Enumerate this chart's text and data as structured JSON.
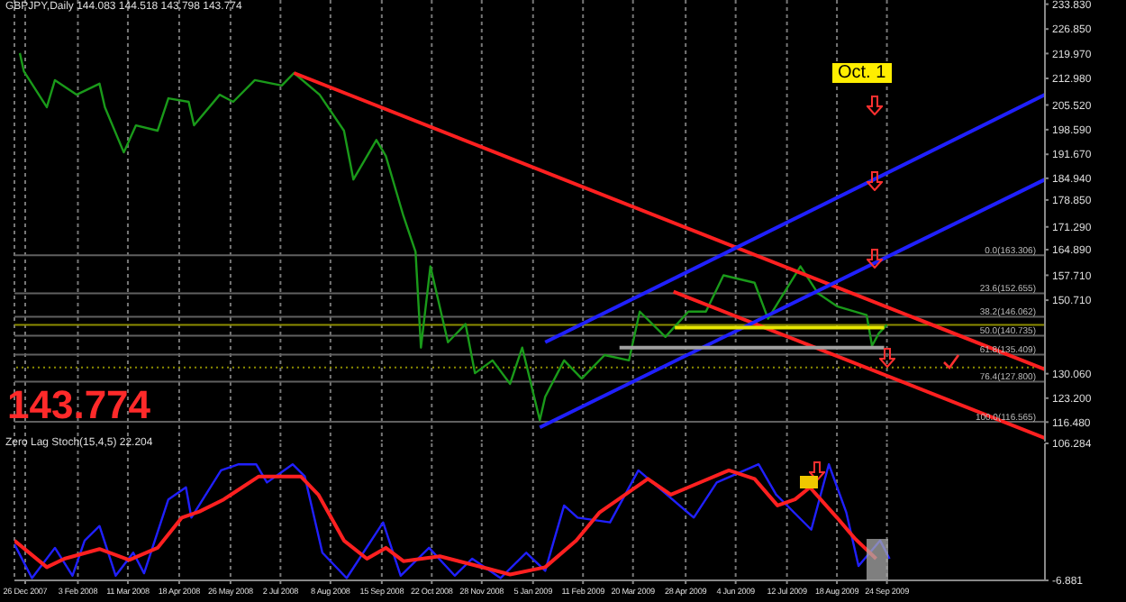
{
  "chart_data": [
    {
      "type": "line",
      "title": "GBPJPY,Daily  144.083 144.518 143.798 143.774",
      "annotations": [
        "143.774",
        "Oct. 1"
      ],
      "xlim": [
        "2007-12-18",
        "2010-01-19"
      ],
      "xticks": [
        {
          "value": "2007-12-26",
          "label": null
        },
        {
          "value": "2008-02-03",
          "label": null
        },
        {
          "value": "2008-03-11",
          "label": null
        },
        {
          "value": "2008-04-18",
          "label": null
        },
        {
          "value": "2008-05-26",
          "label": null
        },
        {
          "value": "2008-07-02",
          "label": null
        },
        {
          "value": "2008-08-08",
          "label": null
        },
        {
          "value": "2008-09-15",
          "label": null
        },
        {
          "value": "2008-10-22",
          "label": null
        },
        {
          "value": "2008-11-28",
          "label": null
        },
        {
          "value": "2009-01-05",
          "label": null
        },
        {
          "value": "2009-02-11",
          "label": null
        },
        {
          "value": "2009-03-20",
          "label": null
        },
        {
          "value": "2009-04-28",
          "label": null
        },
        {
          "value": "2009-06-04",
          "label": null
        },
        {
          "value": "2009-07-12",
          "label": null
        },
        {
          "value": "2009-08-18",
          "label": null
        },
        {
          "value": "2009-09-24",
          "label": null
        }
      ],
      "ylim": [
        111,
        235
      ],
      "yticks": [
        {
          "value": 233.83,
          "label": "233.830"
        },
        {
          "value": 226.85,
          "label": "226.850"
        },
        {
          "value": 219.97,
          "label": "219.970"
        },
        {
          "value": 212.98,
          "label": "212.980"
        },
        {
          "value": 205.52,
          "label": "205.520"
        },
        {
          "value": 198.59,
          "label": "198.590"
        },
        {
          "value": 191.67,
          "label": "191.670"
        },
        {
          "value": 184.94,
          "label": "184.940"
        },
        {
          "value": 178.85,
          "label": "178.850"
        },
        {
          "value": 171.29,
          "label": "171.290"
        },
        {
          "value": 164.89,
          "label": "164.890"
        },
        {
          "value": 157.71,
          "label": "157.710"
        },
        {
          "value": 150.71,
          "label": "150.710"
        },
        {
          "value": 130.06,
          "label": "130.060"
        },
        {
          "value": 123.2,
          "label": "123.200"
        },
        {
          "value": 116.48,
          "label": "116.480"
        }
      ],
      "tick_labels": "y",
      "grid": "x",
      "legend": false,
      "marker": "none",
      "line_style": "solid",
      "series": [
        {
          "color": "#1a9a1a",
          "x": [
            "2007-12-22",
            "2007-12-25",
            "2008-01-11",
            "2008-01-17",
            "2008-02-02",
            "2008-02-19",
            "2008-02-23",
            "2008-03-08",
            "2008-03-17",
            "2008-04-02",
            "2008-04-10",
            "2008-04-25",
            "2008-04-29",
            "2008-05-18",
            "2008-05-28",
            "2008-06-13",
            "2008-07-03",
            "2008-07-12",
            "2008-07-31",
            "2008-08-18",
            "2008-08-25",
            "2008-09-11",
            "2008-09-18",
            "2008-10-01",
            "2008-10-10",
            "2008-10-14",
            "2008-10-21",
            "2008-11-03",
            "2008-11-16",
            "2008-11-23",
            "2008-12-06",
            "2008-12-19",
            "2008-12-28",
            "2009-01-10",
            "2009-01-14",
            "2009-01-28",
            "2009-02-10",
            "2009-02-27",
            "2009-03-17",
            "2009-03-25",
            "2009-04-13",
            "2009-04-30",
            "2009-05-13",
            "2009-05-26",
            "2009-06-18",
            "2009-06-28",
            "2009-07-22",
            "2009-08-04",
            "2009-08-18",
            "2009-09-09",
            "2009-09-13",
            "2009-09-18",
            "2009-09-24"
          ],
          "values": [
            220.1,
            215.0,
            204.9,
            212.5,
            208.4,
            211.5,
            204.9,
            192.2,
            199.8,
            198.3,
            207.4,
            206.4,
            199.8,
            208.4,
            206.4,
            212.5,
            211.0,
            214.5,
            208.4,
            198.3,
            184.6,
            195.7,
            191.2,
            174.4,
            164.3,
            137.4,
            160.2,
            138.9,
            144.0,
            130.2,
            133.8,
            127.2,
            137.4,
            117.0,
            123.6,
            133.8,
            128.7,
            135.3,
            133.8,
            147.5,
            140.4,
            147.5,
            147.5,
            157.7,
            155.6,
            145.5,
            160.2,
            152.6,
            149.0,
            146.5,
            137.9,
            141.4,
            143.8
          ]
        },
        {
          "color": "#ff2020",
          "x": [
            "2008-07-12",
            "2010-01-19"
          ],
          "values": [
            214.5,
            131.3
          ]
        },
        {
          "color": "#ff2020",
          "x": [
            "2009-04-19",
            "2010-01-19"
          ],
          "values": [
            153.1,
            112
          ]
        },
        {
          "color": "#2020ff",
          "x": [
            "2009-01-14",
            "2010-01-19"
          ],
          "values": [
            138.9,
            208.4
          ]
        },
        {
          "color": "#2020ff",
          "x": [
            "2009-01-10",
            "2010-01-19"
          ],
          "values": [
            115.0,
            184.6
          ]
        },
        {
          "color": "#e6e600",
          "x": [
            "2009-04-20",
            "2009-09-22"
          ],
          "values": [
            143.0,
            143.0
          ]
        },
        {
          "color": "#a0a0a0",
          "x": [
            "2009-03-10",
            "2009-09-22"
          ],
          "values": [
            137.4,
            137.4
          ]
        }
      ],
      "ref_lines": [
        {
          "axis": "y",
          "value": 143.774,
          "color": "#8c8c00",
          "line_style": "solid"
        },
        {
          "axis": "y",
          "value": 131.8,
          "color": "#8c8c00",
          "line_style": "dotted"
        },
        {
          "axis": "y",
          "value": 163.306,
          "label": "0.0(163.306)",
          "color": "#606060",
          "line_style": "solid"
        },
        {
          "axis": "y",
          "value": 152.655,
          "label": "23.6(152.655)",
          "color": "#606060",
          "line_style": "solid"
        },
        {
          "axis": "y",
          "value": 146.062,
          "label": "38.2(146.062)",
          "color": "#606060",
          "line_style": "solid"
        },
        {
          "axis": "y",
          "value": 140.735,
          "label": "50.0(140.735)",
          "color": "#606060",
          "line_style": "solid"
        },
        {
          "axis": "y",
          "value": 135.409,
          "label": "61.8(135.409)",
          "color": "#606060",
          "line_style": "solid"
        },
        {
          "axis": "y",
          "value": 127.8,
          "label": "76.4(127.800)",
          "color": "#606060",
          "line_style": "solid"
        },
        {
          "axis": "y",
          "value": 116.565,
          "label": "100.0(116.565)",
          "color": "#606060",
          "line_style": "solid"
        }
      ]
    },
    {
      "type": "line",
      "title": "Zero Lag Stoch(15,4,5) 22.204",
      "xlim": [
        "2007-12-18",
        "2010-01-19"
      ],
      "xticks": [
        {
          "value": "2007-12-26",
          "label": "26 Dec 2007"
        },
        {
          "value": "2008-02-03",
          "label": "3 Feb 2008"
        },
        {
          "value": "2008-03-11",
          "label": "11 Mar 2008"
        },
        {
          "value": "2008-04-18",
          "label": "18 Apr 2008"
        },
        {
          "value": "2008-05-26",
          "label": "26 May 2008"
        },
        {
          "value": "2008-07-02",
          "label": "2 Jul 2008"
        },
        {
          "value": "2008-08-08",
          "label": "8 Aug 2008"
        },
        {
          "value": "2008-09-15",
          "label": "15 Sep 2008"
        },
        {
          "value": "2008-10-22",
          "label": "22 Oct 2008"
        },
        {
          "value": "2008-11-28",
          "label": "28 Nov 2008"
        },
        {
          "value": "2009-01-05",
          "label": "5 Jan 2009"
        },
        {
          "value": "2009-02-11",
          "label": "11 Feb 2009"
        },
        {
          "value": "2009-03-20",
          "label": "20 Mar 2009"
        },
        {
          "value": "2009-04-28",
          "label": "28 Apr 2009"
        },
        {
          "value": "2009-06-04",
          "label": "4 Jun 2009"
        },
        {
          "value": "2009-07-12",
          "label": "12 Jul 2009"
        },
        {
          "value": "2009-08-18",
          "label": "18 Aug 2009"
        },
        {
          "value": "2009-09-24",
          "label": "24 Sep 2009"
        }
      ],
      "ylim": [
        -6.881,
        106.284
      ],
      "yticks": [
        106.284,
        -6.881
      ],
      "grid": "x",
      "legend": false,
      "marker": "none",
      "line_style": "solid",
      "series": [
        {
          "color": "#2020ff",
          "x": [
            "2007-12-18",
            "2007-12-31",
            "2008-01-17",
            "2008-01-30",
            "2008-02-08",
            "2008-02-19",
            "2008-03-02",
            "2008-03-15",
            "2008-03-23",
            "2008-04-10",
            "2008-04-23",
            "2008-04-27",
            "2008-05-19",
            "2008-06-01",
            "2008-06-14",
            "2008-06-22",
            "2008-07-11",
            "2008-07-20",
            "2008-08-02",
            "2008-08-20",
            "2008-09-16",
            "2008-09-29",
            "2008-10-20",
            "2008-11-08",
            "2008-11-21",
            "2008-12-12",
            "2008-12-31",
            "2009-01-14",
            "2009-01-28",
            "2009-02-07",
            "2009-03-03",
            "2009-03-24",
            "2009-05-04",
            "2009-05-21",
            "2009-06-21",
            "2009-07-04",
            "2009-07-30",
            "2009-08-12",
            "2009-08-25",
            "2009-09-03",
            "2009-09-19",
            "2009-09-26"
          ],
          "values": [
            23,
            -5,
            20,
            -3,
            26,
            38,
            -3,
            16,
            -1,
            60,
            70,
            45,
            84,
            89,
            89,
            74,
            89,
            79,
            16,
            -5,
            41,
            -3,
            20,
            -3,
            11,
            -5,
            16,
            1,
            55,
            45,
            41,
            84,
            45,
            74,
            89,
            64,
            35,
            89,
            49,
            5,
            26,
            11
          ]
        },
        {
          "color": "#ff2020",
          "x": [
            "2007-12-18",
            "2008-01-11",
            "2008-01-24",
            "2008-02-19",
            "2008-03-12",
            "2008-04-02",
            "2008-04-20",
            "2008-05-03",
            "2008-05-21",
            "2008-06-16",
            "2008-07-17",
            "2008-07-30",
            "2008-08-18",
            "2008-09-04",
            "2008-09-18",
            "2008-10-01",
            "2008-10-28",
            "2008-12-02",
            "2008-12-19",
            "2009-01-14",
            "2009-02-06",
            "2009-02-23",
            "2009-03-31",
            "2009-04-17",
            "2009-04-30",
            "2009-05-30",
            "2009-06-18",
            "2009-07-05",
            "2009-07-18",
            "2009-07-29",
            "2009-08-18",
            "2009-08-31",
            "2009-09-16"
          ],
          "values": [
            26,
            4,
            11,
            19,
            10,
            20,
            45,
            50,
            60,
            79,
            79,
            64,
            26,
            11,
            20,
            9,
            13,
            3,
            -2,
            4,
            26,
            49,
            77,
            64,
            70,
            84,
            77,
            55,
            60,
            70,
            45,
            28,
            11
          ]
        }
      ]
    }
  ]
}
